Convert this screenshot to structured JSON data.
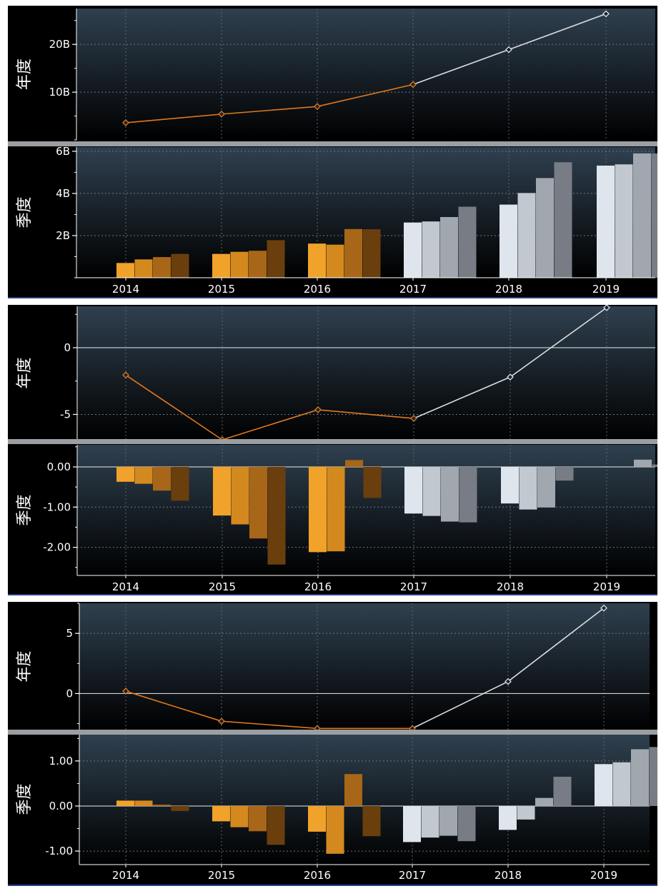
{
  "colors": {
    "orange_q": [
      "#f0a22a",
      "#d4891f",
      "#a86618",
      "#6a3f0d"
    ],
    "grey_q": [
      "#dfe5ec",
      "#c2c8cf",
      "#a1a7ae",
      "#787c84"
    ],
    "orange_line": "#e0781c",
    "white_line": "#d9dde2",
    "plot_top": "#2f404f",
    "plot_bottom": "#000000"
  },
  "panels": [
    {
      "annual_label": "年度",
      "quarterly_label": "季度",
      "annual": {
        "ticks": [
          {
            "v": 20,
            "label": "20B"
          },
          {
            "v": 10,
            "label": "10B"
          }
        ]
      },
      "quarterly": {
        "ticks": [
          {
            "v": 6,
            "label": "6B"
          },
          {
            "v": 4,
            "label": "4B"
          },
          {
            "v": 2,
            "label": "2B"
          }
        ]
      },
      "x_labels": [
        "2014",
        "2015",
        "2016",
        "2017",
        "2018",
        "2019"
      ]
    },
    {
      "annual_label": "年度",
      "quarterly_label": "季度",
      "annual": {
        "ticks": [
          {
            "v": 0,
            "label": "0"
          },
          {
            "v": -5,
            "label": "-5"
          }
        ]
      },
      "quarterly": {
        "ticks": [
          {
            "v": 0,
            "label": "0.00"
          },
          {
            "v": -1,
            "label": "-1.00"
          },
          {
            "v": -2,
            "label": "-2.00"
          }
        ]
      },
      "x_labels": [
        "2014",
        "2015",
        "2016",
        "2017",
        "2018",
        "2019"
      ]
    },
    {
      "annual_label": "年度",
      "quarterly_label": "季度",
      "annual": {
        "ticks": [
          {
            "v": 5,
            "label": "5"
          },
          {
            "v": 0,
            "label": "0"
          }
        ]
      },
      "quarterly": {
        "ticks": [
          {
            "v": 1,
            "label": "1.00"
          },
          {
            "v": 0,
            "label": "0.00"
          },
          {
            "v": -1,
            "label": "-1.00"
          }
        ]
      },
      "x_labels": [
        "2014",
        "2015",
        "2016",
        "2017",
        "2018",
        "2019"
      ]
    }
  ],
  "chart_data": [
    {
      "type": "line",
      "panel": 1,
      "ylabel": "年度",
      "x": [
        "2014",
        "2015",
        "2016",
        "2017",
        "2018",
        "2019"
      ],
      "values": [
        3.6,
        5.4,
        7.0,
        11.6,
        18.9,
        26.4
      ],
      "unit": "B",
      "ylim": [
        0,
        27.5
      ]
    },
    {
      "type": "bar",
      "panel": 1,
      "ylabel": "季度",
      "categories": [
        "2014",
        "2015",
        "2016",
        "2017",
        "2018",
        "2019"
      ],
      "values": [
        [
          0.7,
          0.87,
          0.98,
          1.13
        ],
        [
          1.13,
          1.23,
          1.28,
          1.78
        ],
        [
          1.62,
          1.57,
          2.31,
          2.3
        ],
        [
          2.62,
          2.67,
          2.88,
          3.37
        ],
        [
          3.47,
          4.02,
          4.73,
          5.48
        ],
        [
          5.32,
          5.38,
          5.9,
          5.9
        ]
      ],
      "unit": "B",
      "ylim": [
        0,
        6.2
      ]
    },
    {
      "type": "line",
      "panel": 2,
      "ylabel": "年度",
      "x": [
        "2014",
        "2015",
        "2016",
        "2017",
        "2018",
        "2019"
      ],
      "values": [
        -2.05,
        -6.9,
        -4.65,
        -5.3,
        -2.2,
        3.0
      ],
      "ylim": [
        -6.9,
        3.1
      ]
    },
    {
      "type": "bar",
      "panel": 2,
      "ylabel": "季度",
      "categories": [
        "2014",
        "2015",
        "2016",
        "2017",
        "2018",
        "2019"
      ],
      "values": [
        [
          -0.37,
          -0.42,
          -0.59,
          -0.84
        ],
        [
          -1.21,
          -1.43,
          -1.78,
          -2.43
        ],
        [
          -2.12,
          -2.1,
          0.17,
          -0.77
        ],
        [
          -1.16,
          -1.22,
          -1.36,
          -1.38
        ],
        [
          -0.91,
          -1.06,
          -1.01,
          -0.34
        ],
        [
          null,
          null,
          0.18,
          0.06
        ]
      ],
      "ylim": [
        -2.7,
        0.55
      ]
    },
    {
      "type": "line",
      "panel": 3,
      "ylabel": "年度",
      "x": [
        "2014",
        "2015",
        "2016",
        "2017",
        "2018",
        "2019"
      ],
      "values": [
        0.2,
        -2.3,
        -2.9,
        -2.9,
        1.0,
        7.1
      ],
      "ylim": [
        -3.0,
        7.5
      ]
    },
    {
      "type": "bar",
      "panel": 3,
      "ylabel": "季度",
      "categories": [
        "2014",
        "2015",
        "2016",
        "2017",
        "2018",
        "2019"
      ],
      "values": [
        [
          0.12,
          0.12,
          0.03,
          -0.11
        ],
        [
          -0.34,
          -0.47,
          -0.56,
          -0.86
        ],
        [
          -0.57,
          -1.06,
          0.71,
          -0.67
        ],
        [
          -0.8,
          -0.7,
          -0.66,
          -0.78
        ],
        [
          -0.53,
          -0.3,
          0.18,
          0.65
        ],
        [
          0.93,
          0.97,
          1.26,
          1.31
        ]
      ],
      "ylim": [
        -1.3,
        1.6
      ]
    }
  ]
}
